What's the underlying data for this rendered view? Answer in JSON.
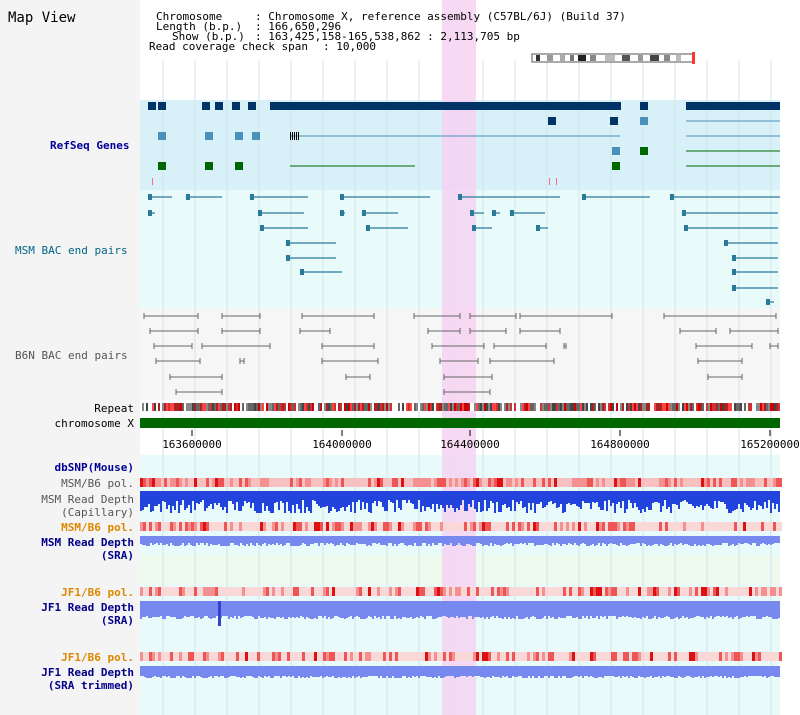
{
  "page": {
    "title": "Map View"
  },
  "header": {
    "chromosome_key": "Chromosome",
    "chromosome_value": ": Chromosome X, reference assembly (C57BL/6J) (Build 37)",
    "length_key": "Length (b.p.)",
    "length_value": ": 166,650,296",
    "show_key": "Show (b.p.)",
    "show_value": ": 163,425,158-165,538,862 : 2,113,705 bp",
    "coverage_key": "Read coverage check span",
    "coverage_value": ": 10,000"
  },
  "tracks": {
    "refseq": "RefSeq Genes",
    "msm_bac": "MSM BAC end pairs",
    "b6n_bac": "B6N BAC end pairs",
    "repeat": "Repeat",
    "chromosome": "chromosome X",
    "dbsnp": "dbSNP(Mouse)",
    "msm_pol1": "MSM/B6 pol.",
    "msm_depth_cap_1": "MSM Read Depth",
    "msm_depth_cap_2": "(Capillary)",
    "msm_pol2": "MSM/B6 pol.",
    "msm_depth_sra_1": "MSM Read Depth",
    "msm_depth_sra_2": "(SRA)",
    "jf1_pol1": "JF1/B6 pol.",
    "jf1_depth_sra_1": "JF1 Read Depth",
    "jf1_depth_sra_2": "(SRA)",
    "jf1_pol2": "JF1/B6 pol.",
    "jf1_depth_trim_1": "JF1 Read Depth",
    "jf1_depth_trim_2": "(SRA trimmed)"
  },
  "ruler": {
    "ticks": [
      "163600000",
      "164000000",
      "164400000",
      "164800000",
      "165200000"
    ]
  },
  "colors": {
    "refseq_bg": "#d8f0f8",
    "track_bg": "#e8fafa",
    "highlight": "#f6d2f2",
    "gene_navy": "#003366",
    "gene_teal": "#4a90b8",
    "gene_green": "#006600",
    "chromosome_bar": "#006600",
    "depth_blue": "#2244dd",
    "depth_lavender": "#7788ee"
  }
}
